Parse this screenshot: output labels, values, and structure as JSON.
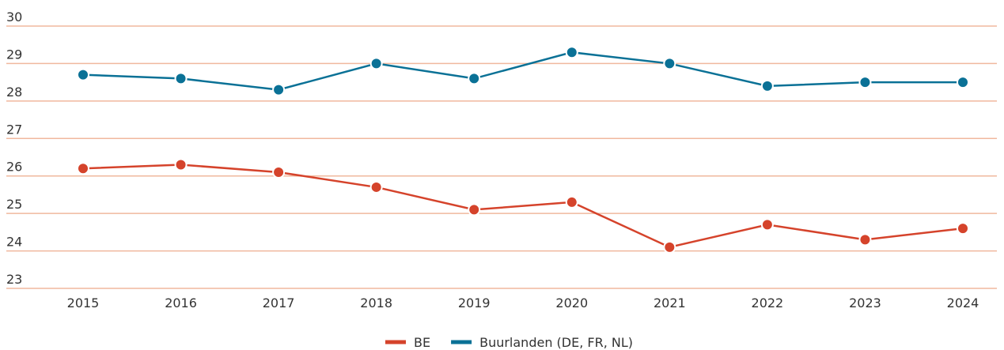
{
  "chart_data": {
    "type": "line",
    "x": [
      "2015",
      "2016",
      "2017",
      "2018",
      "2019",
      "2020",
      "2021",
      "2022",
      "2023",
      "2024"
    ],
    "series": [
      {
        "name": "BE",
        "color": "#d5432b",
        "values": [
          26.2,
          26.3,
          26.1,
          25.7,
          25.1,
          25.3,
          24.1,
          24.7,
          24.3,
          24.6
        ]
      },
      {
        "name": "Buurlanden (DE, FR, NL)",
        "color": "#0a7196",
        "values": [
          28.7,
          28.6,
          28.3,
          29.0,
          28.6,
          29.3,
          29.0,
          28.4,
          28.5,
          28.5
        ]
      }
    ],
    "ylim": [
      23,
      30
    ],
    "yticks": [
      23,
      24,
      25,
      26,
      27,
      28,
      29,
      30
    ],
    "grid": true,
    "grid_color": "#f0b89e",
    "legend": "bottom"
  }
}
